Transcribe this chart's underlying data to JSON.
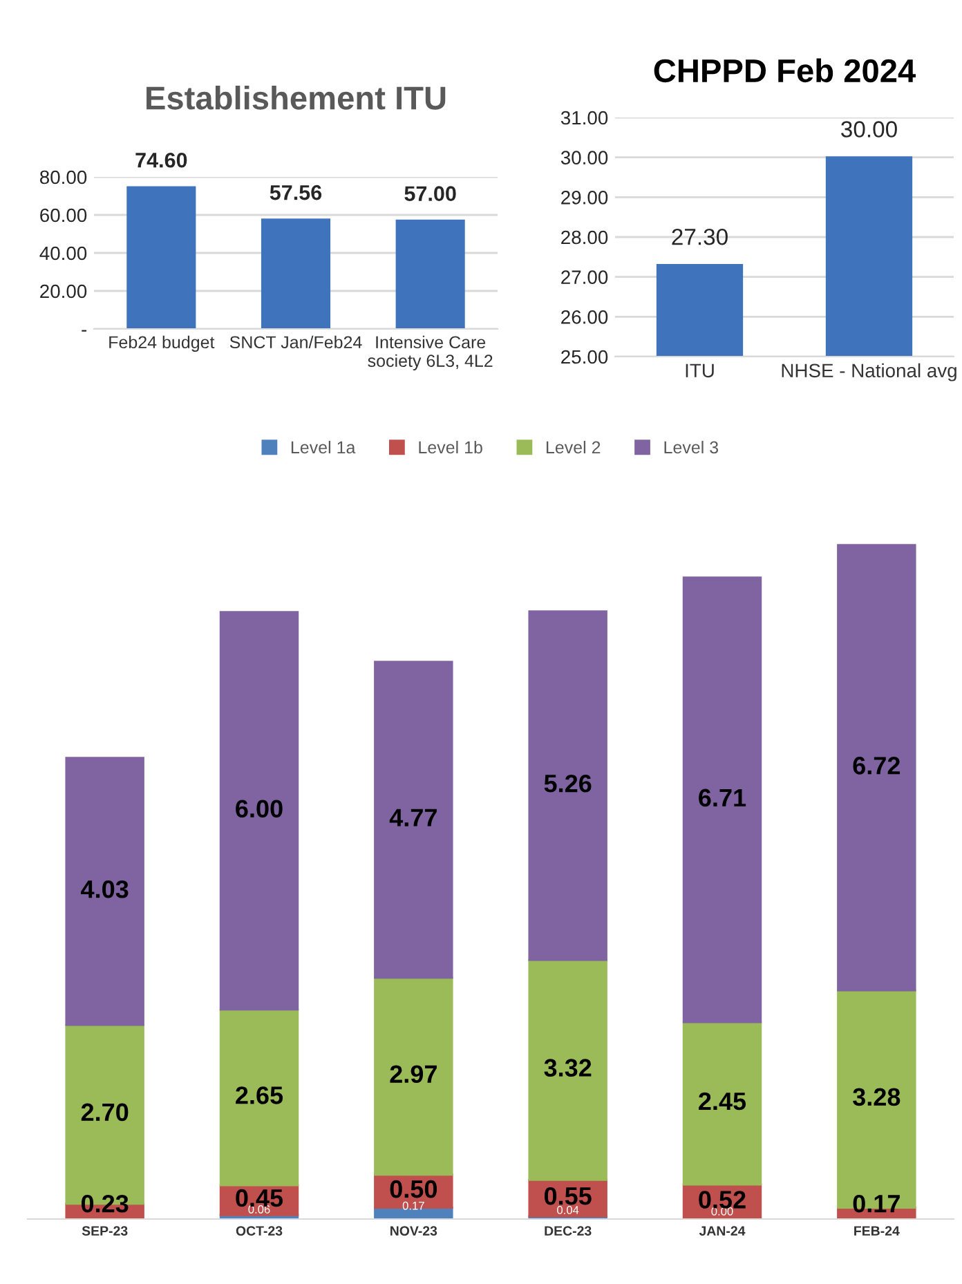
{
  "chart_data": [
    {
      "type": "bar",
      "title": "Establishement ITU",
      "categories": [
        "Feb24 budget",
        "SNCT Jan/Feb24",
        "Intensive Care\nsociety 6L3, 4L2"
      ],
      "values": [
        74.6,
        57.56,
        57.0
      ],
      "color": "#3f74bd",
      "ylim": [
        0,
        80
      ],
      "yticks": [
        {
          "value": 0,
          "label": "-"
        },
        {
          "value": 20,
          "label": "20.00"
        },
        {
          "value": 40,
          "label": "40.00"
        },
        {
          "value": 60,
          "label": "60.00"
        },
        {
          "value": 80,
          "label": "80.00"
        }
      ],
      "grid": "y",
      "value_labels": [
        "74.60",
        "57.56",
        "57.00"
      ]
    },
    {
      "type": "bar",
      "title": "CHPPD Feb 2024",
      "categories": [
        "ITU",
        "NHSE - National avg"
      ],
      "values": [
        27.3,
        30.0
      ],
      "color": "#3f74bd",
      "ylim": [
        25,
        31
      ],
      "yticks": [
        {
          "value": 25,
          "label": "25.00"
        },
        {
          "value": 26,
          "label": "26.00"
        },
        {
          "value": 27,
          "label": "27.00"
        },
        {
          "value": 28,
          "label": "28.00"
        },
        {
          "value": 29,
          "label": "29.00"
        },
        {
          "value": 30,
          "label": "30.00"
        },
        {
          "value": 31,
          "label": "31.00"
        }
      ],
      "grid": "y",
      "value_labels": [
        "27.30",
        "30.00"
      ]
    },
    {
      "type": "bar",
      "stacked": true,
      "categories": [
        "SEP-23",
        "OCT-23",
        "NOV-23",
        "DEC-23",
        "JAN-24",
        "FEB-24"
      ],
      "tick_labels": "x",
      "grid": false,
      "legend": "top",
      "series": [
        {
          "name": "Level 1a",
          "color": "#4f81bd",
          "values": [
            null,
            0.06,
            0.17,
            0.04,
            0.0,
            null
          ],
          "value_labels": [
            null,
            "0.06",
            "0.17",
            "0.04",
            "0.00",
            null
          ]
        },
        {
          "name": "Level 1b",
          "color": "#c0504d",
          "values": [
            0.23,
            0.45,
            0.5,
            0.55,
            0.52,
            0.17
          ],
          "value_labels": [
            "0.23",
            "0.45",
            "0.50",
            "0.55",
            "0.52",
            "0.17"
          ]
        },
        {
          "name": "Level 2",
          "color": "#9bbb59",
          "values": [
            2.7,
            2.65,
            2.97,
            3.32,
            2.45,
            3.28
          ],
          "value_labels": [
            "2.70",
            "2.65",
            "2.97",
            "3.32",
            "2.45",
            "3.28"
          ]
        },
        {
          "name": "Level 3",
          "color": "#8064a2",
          "values": [
            4.03,
            6.0,
            4.77,
            5.26,
            6.71,
            6.72
          ],
          "value_labels": [
            "4.03",
            "6.00",
            "4.77",
            "5.26",
            "6.71",
            "6.72"
          ]
        }
      ]
    }
  ]
}
